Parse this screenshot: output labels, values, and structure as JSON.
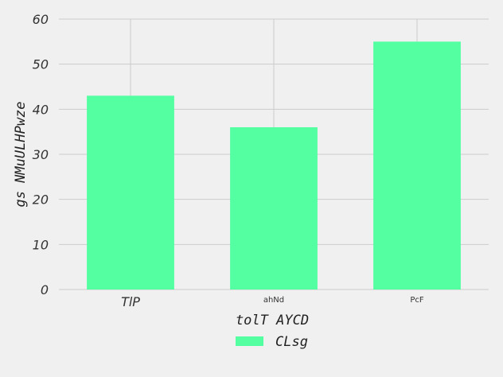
{
  "chart_data": {
    "type": "bar",
    "title": "",
    "xlabel": "tolT AYCD",
    "ylabel": "gs NMuULHPwze",
    "categories": [
      "TlP",
      "ahNd",
      "PcF"
    ],
    "category_label_style": [
      "large",
      "small",
      "small"
    ],
    "series": [
      {
        "name": "CLsg",
        "values": [
          43,
          36,
          55
        ],
        "color": "#54ffa2"
      }
    ],
    "ylim": [
      0,
      60
    ],
    "yticks": [
      0,
      10,
      20,
      30,
      40,
      50,
      60
    ],
    "grid": true,
    "legend_position": "bottom-center",
    "background": "#f0f0f0",
    "grid_color": "#cbcbcb"
  }
}
